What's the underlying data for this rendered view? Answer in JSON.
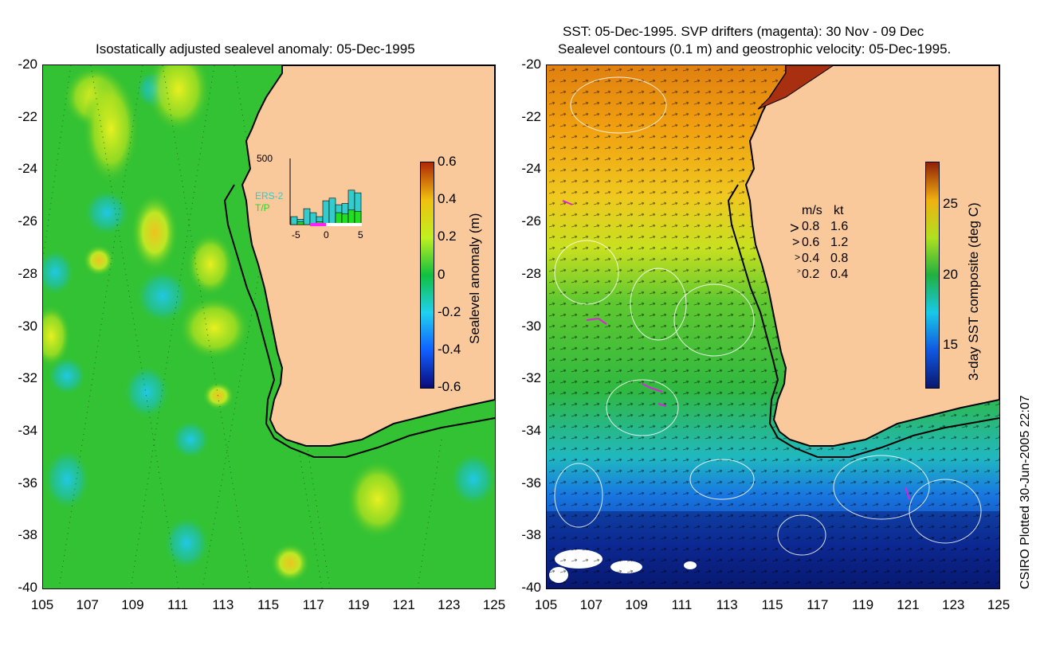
{
  "left_panel": {
    "title": "Isostatically adjusted sealevel anomaly: 05-Dec-1995",
    "colorbar": {
      "label": "Sealevel anomaly (m)",
      "ticks": [
        "0.6",
        "0.4",
        "0.2",
        "0",
        "-0.2",
        "-0.4",
        "-0.6"
      ],
      "range": [
        -0.6,
        0.6
      ],
      "colors": [
        "#0a0a7a",
        "#1060ff",
        "#20d0f0",
        "#10c040",
        "#c0f020",
        "#f0c010",
        "#b02808"
      ]
    },
    "inset": {
      "ymax_label": "500",
      "series": [
        "ERS-2",
        "T/P"
      ],
      "series_colors": [
        "#33cccc",
        "#22dd22"
      ],
      "xticks": [
        "-5",
        "0",
        "5"
      ],
      "ers2_counts": [
        60,
        40,
        120,
        90,
        60,
        180,
        200,
        150,
        160,
        260,
        240
      ],
      "tp_counts": [
        0,
        20,
        0,
        0,
        20,
        0,
        0,
        90,
        80,
        110,
        100
      ],
      "ymax": 500
    }
  },
  "right_panel": {
    "title_line1": "SST: 05-Dec-1995. SVP drifters (magenta): 30 Nov - 09 Dec",
    "title_line2": "Sealevel contours (0.1 m) and geostrophic velocity: 05-Dec-1995.",
    "colorbar": {
      "label": "3-day SST composite (deg C)",
      "ticks": [
        "25",
        "20",
        "15"
      ],
      "tick_values": [
        25,
        20,
        15
      ],
      "range": [
        12,
        28
      ],
      "colors": [
        "#081870",
        "#1058e0",
        "#18c8e8",
        "#20b040",
        "#b0e020",
        "#f0b010",
        "#902008"
      ]
    },
    "velocity_legend": {
      "header_ms": "m/s",
      "header_kt": "kt",
      "rows": [
        {
          "ms": "0.8",
          "kt": "1.6"
        },
        {
          "ms": "0.6",
          "kt": "1.2"
        },
        {
          "ms": "0.4",
          "kt": "0.8"
        },
        {
          "ms": "0.2",
          "kt": "0.4"
        }
      ]
    }
  },
  "axes": {
    "lat_ticks": [
      "-20",
      "-22",
      "-24",
      "-26",
      "-28",
      "-30",
      "-32",
      "-34",
      "-36",
      "-38",
      "-40"
    ],
    "lon_ticks": [
      "105",
      "107",
      "109",
      "111",
      "113",
      "115",
      "117",
      "119",
      "121",
      "123",
      "125"
    ],
    "lat_range": [
      -40,
      -20
    ],
    "lon_range": [
      105,
      125
    ]
  },
  "credit": "CSIRO Plotted 30-Jun-2005 22:07",
  "colors": {
    "land": "#f9c89b",
    "ocean_left": "#33c233",
    "coastline": "#000000"
  }
}
